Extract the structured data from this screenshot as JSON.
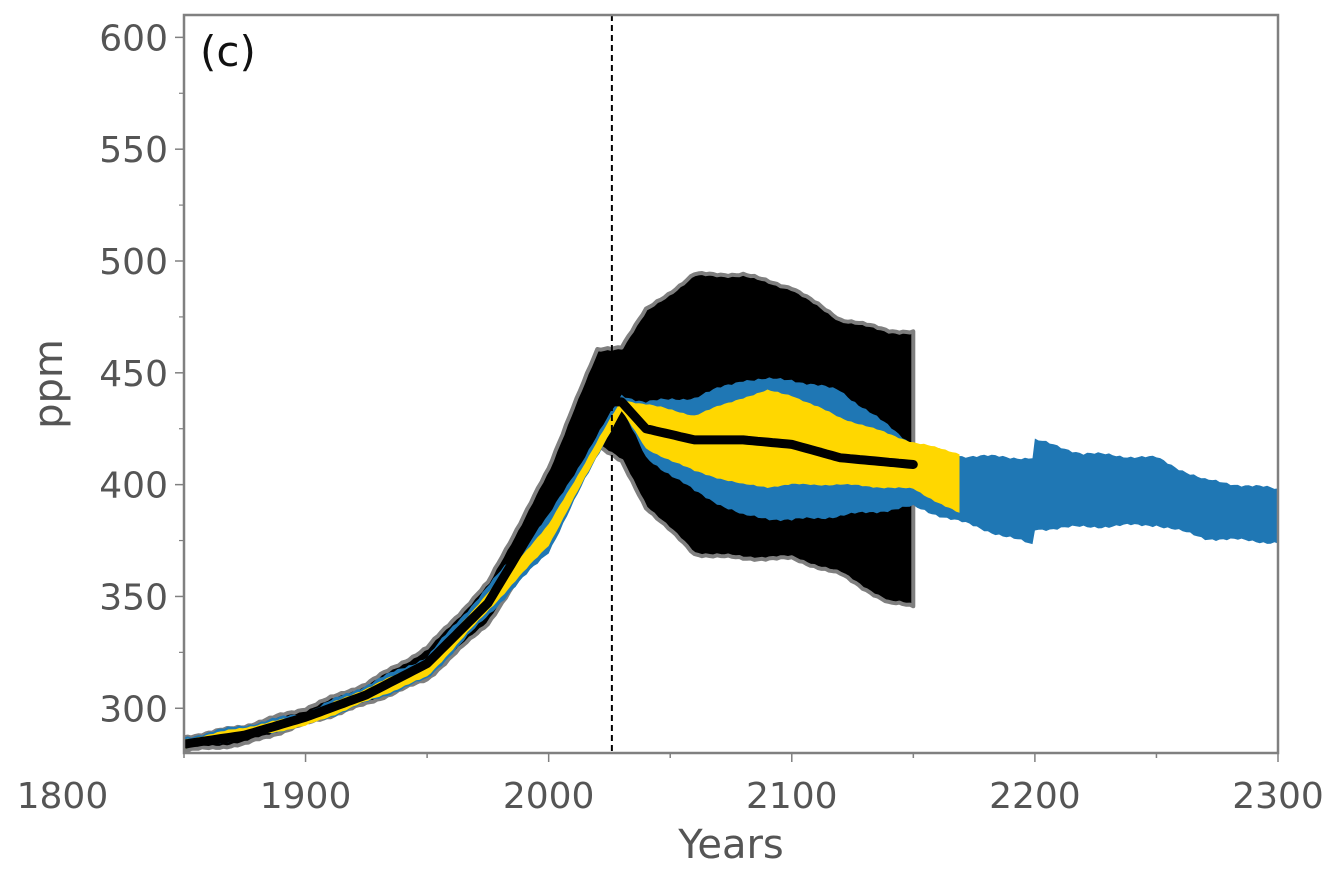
{
  "chart_data": {
    "type": "area",
    "panel_label": "(c)",
    "xlabel": "Years",
    "ylabel": "ppm",
    "xlim": [
      1850,
      2300
    ],
    "ylim": [
      280,
      610
    ],
    "xticks": [
      1800,
      1900,
      2000,
      2100,
      2200,
      2300
    ],
    "xtick_labels": [
      "1800",
      "1900",
      "2000",
      "2100",
      "2200",
      "2300"
    ],
    "yticks": [
      300,
      350,
      400,
      450,
      500,
      550,
      600
    ],
    "ytick_labels": [
      "300",
      "350",
      "400",
      "450",
      "500",
      "550",
      "600"
    ],
    "vline_x": 2026,
    "grid": false,
    "colors": {
      "black_band": "#000000",
      "black_outline": "#7f7f7f",
      "blue_band": "#1f77b4",
      "yellow_band": "#ffd700",
      "median": "#000000",
      "vline": "#000000",
      "axes": "#808080"
    },
    "series": [
      {
        "color": "black",
        "x": [
          1850,
          1875,
          1900,
          1925,
          1950,
          1975,
          2000,
          2010,
          2020,
          2030,
          2040,
          2060,
          2080,
          2100,
          2120,
          2140,
          2150
        ],
        "upper": [
          287,
          292,
          300,
          311,
          327,
          356,
          407,
          435,
          460,
          462,
          478,
          494,
          494,
          488,
          474,
          469,
          468
        ],
        "lower": [
          281,
          284,
          293,
          302,
          313,
          338,
          377,
          398,
          418,
          410,
          390,
          369,
          367,
          367,
          360,
          347,
          346
        ],
        "median": [
          284,
          288,
          296,
          306,
          320,
          347,
          392,
          416,
          437,
          437,
          425,
          420,
          420,
          418,
          412,
          410,
          409
        ]
      },
      {
        "color": "blue",
        "x": [
          1850,
          1900,
          1950,
          2000,
          2030,
          2040,
          2060,
          2080,
          2100,
          2120,
          2150,
          2170,
          2199,
          2200,
          2220,
          2250,
          2270,
          2300
        ],
        "upper": [
          287,
          298,
          323,
          386,
          440,
          437,
          439,
          447,
          447,
          442,
          418,
          413,
          412,
          420,
          414,
          412,
          402,
          398
        ],
        "lower": [
          282,
          292,
          313,
          370,
          434,
          412,
          397,
          386,
          384,
          386,
          390,
          383,
          373,
          380,
          381,
          382,
          376,
          374
        ]
      },
      {
        "color": "yellow",
        "x": [
          1850,
          1900,
          1950,
          2000,
          2030,
          2040,
          2060,
          2080,
          2090,
          2100,
          2120,
          2150,
          2169
        ],
        "upper": [
          286,
          297,
          321,
          382,
          438,
          436,
          431,
          439,
          442,
          440,
          430,
          419,
          414
        ],
        "lower": [
          282,
          292,
          314,
          373,
          433,
          416,
          406,
          400,
          399,
          400,
          400,
          398,
          387
        ]
      }
    ]
  }
}
